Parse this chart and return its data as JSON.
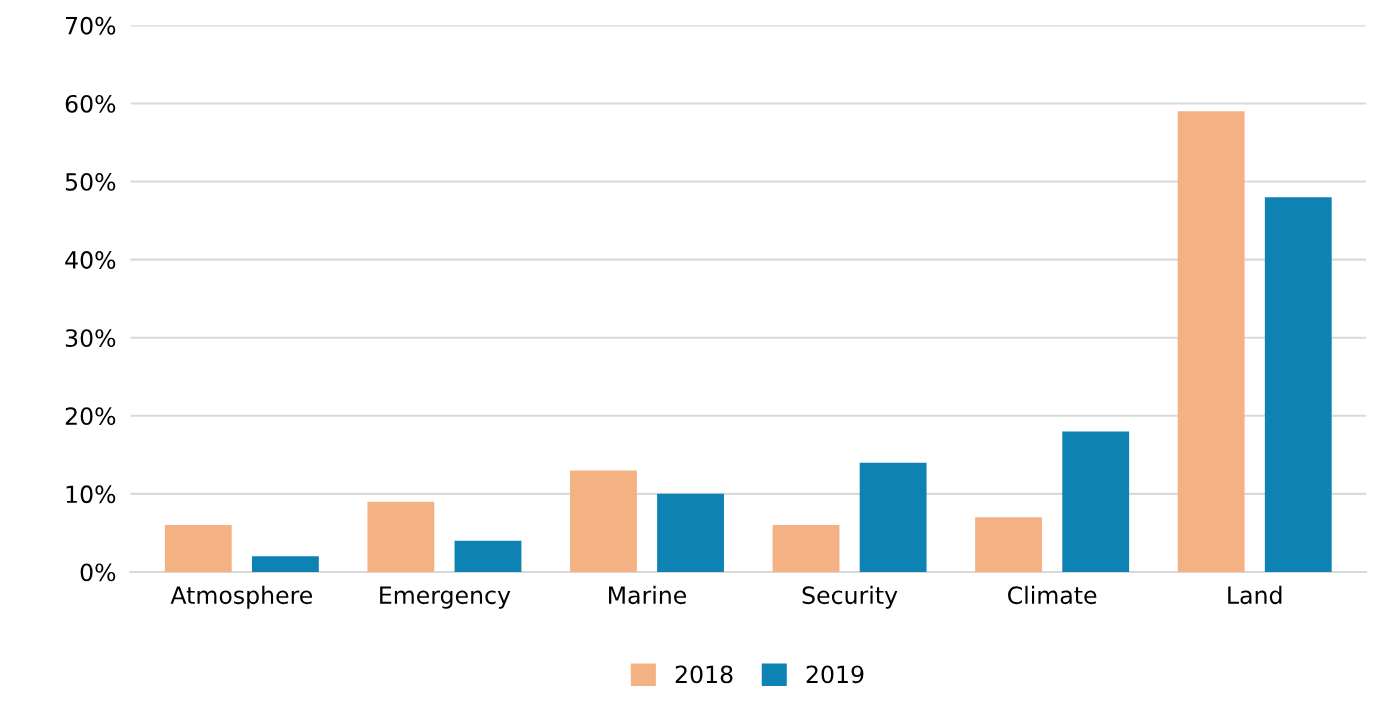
{
  "chart_data": {
    "type": "bar",
    "categories": [
      "Atmosphere",
      "Emergency",
      "Marine",
      "Security",
      "Climate",
      "Land"
    ],
    "series": [
      {
        "name": "2018",
        "color": "#f4b183",
        "values": [
          6,
          9,
          13,
          6,
          7,
          59
        ]
      },
      {
        "name": "2019",
        "color": "#0e83b3",
        "values": [
          2,
          4,
          10,
          14,
          18,
          48
        ]
      }
    ],
    "ylim": [
      0,
      70
    ],
    "yticks": [
      {
        "value": 0,
        "label": "0%"
      },
      {
        "value": 10,
        "label": "10%"
      },
      {
        "value": 20,
        "label": "20%"
      },
      {
        "value": 30,
        "label": "30%"
      },
      {
        "value": 40,
        "label": "40%"
      },
      {
        "value": 50,
        "label": "50%"
      },
      {
        "value": 60,
        "label": "60%"
      },
      {
        "value": 70,
        "label": "70%"
      }
    ],
    "grid": "y",
    "legend": "bottom"
  }
}
